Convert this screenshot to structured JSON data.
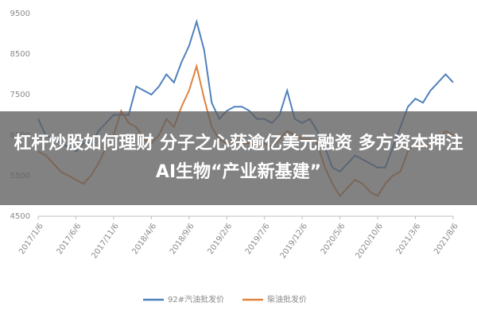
{
  "chart_data": {
    "type": "line",
    "categories": [
      "2017/1/6",
      null,
      null,
      null,
      null,
      "2017/6/6",
      null,
      null,
      null,
      null,
      "2017/11/6",
      null,
      null,
      null,
      null,
      "2018/4/6",
      null,
      null,
      null,
      null,
      "2018/9/6",
      null,
      null,
      null,
      null,
      "2019/2/6",
      null,
      null,
      null,
      null,
      "2019/7/6",
      null,
      null,
      null,
      null,
      "2019/12/6",
      null,
      null,
      null,
      null,
      "2020/5/6",
      null,
      null,
      null,
      null,
      "2020/10/6",
      null,
      null,
      null,
      null,
      "2021/3/6",
      null,
      null,
      null,
      null,
      "2021/8/6"
    ],
    "series": [
      {
        "name": "92#汽油批发价",
        "color": "#4f81bd",
        "values": [
          6900,
          6500,
          6400,
          6300,
          6200,
          6100,
          6300,
          6300,
          6600,
          6800,
          7000,
          7000,
          7000,
          7700,
          7600,
          7500,
          7700,
          8000,
          7800,
          8300,
          8700,
          9300,
          8600,
          7300,
          6900,
          7100,
          7200,
          7200,
          7100,
          6900,
          6900,
          6800,
          7000,
          7600,
          6900,
          6800,
          6900,
          6600,
          6200,
          5700,
          5600,
          5800,
          6000,
          5900,
          5800,
          5700,
          5700,
          6200,
          6700,
          7200,
          7400,
          7300,
          7600,
          7800,
          8000,
          7800
        ]
      },
      {
        "name": "柴油批发价",
        "color": "#e0823d",
        "values": [
          6100,
          6000,
          5800,
          5600,
          5500,
          5400,
          5300,
          5500,
          5800,
          6200,
          6500,
          7100,
          6800,
          6700,
          6400,
          6300,
          6500,
          6900,
          6700,
          7200,
          7600,
          8200,
          7400,
          6700,
          6400,
          6300,
          6400,
          6300,
          6300,
          6200,
          6300,
          6200,
          6400,
          6600,
          6500,
          6400,
          6400,
          6300,
          5700,
          5300,
          5000,
          5200,
          5400,
          5300,
          5100,
          5000,
          5300,
          5500,
          5600,
          6100,
          6300,
          6200,
          6300,
          6400,
          6600,
          6500
        ]
      }
    ],
    "ylim": [
      4500,
      9500
    ],
    "yticks": [
      4500,
      5500,
      6500,
      7500,
      8500,
      9500
    ]
  },
  "headline": "杠杆炒股如何理财 分子之心获逾亿美元融资 多方资本押注AI生物“产业新基建”"
}
